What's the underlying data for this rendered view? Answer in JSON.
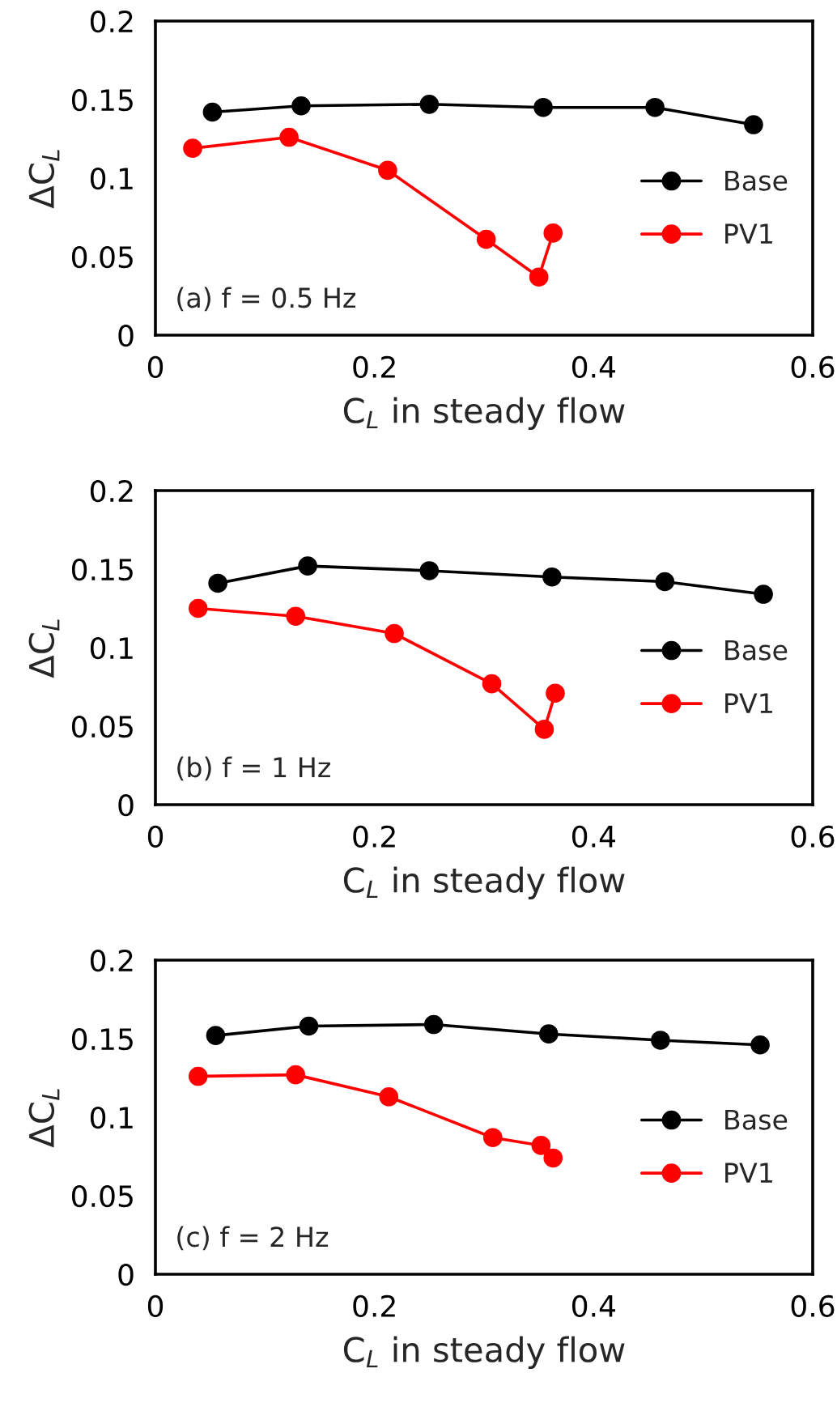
{
  "chart_data": [
    {
      "type": "line",
      "xlabel": "C$_{L}$ in steady flow",
      "ylabel": "ΔC$_{L}$",
      "annotations": [
        "(a) f = 0.5 Hz"
      ],
      "xlim": [
        0,
        0.6
      ],
      "ylim": [
        0,
        0.2
      ],
      "xticks": [
        0,
        0.2,
        0.4,
        0.6
      ],
      "yticks": [
        0,
        0.05,
        0.1,
        0.15,
        0.2
      ],
      "grid": false,
      "legend": "right",
      "marker": "circle",
      "line_style": "solid",
      "series": [
        {
          "name": "Base",
          "color": "#000000",
          "x": [
            0.052,
            0.133,
            0.25,
            0.354,
            0.456,
            0.546
          ],
          "values": [
            0.142,
            0.146,
            0.147,
            0.145,
            0.145,
            0.134
          ]
        },
        {
          "name": "PV1",
          "color": "#ff0000",
          "x": [
            0.034,
            0.122,
            0.212,
            0.302,
            0.35,
            0.363
          ],
          "values": [
            0.119,
            0.126,
            0.105,
            0.061,
            0.037,
            0.065
          ]
        }
      ]
    },
    {
      "type": "line",
      "xlabel": "C$_{L}$ in steady flow",
      "ylabel": "ΔC$_{L}$",
      "annotations": [
        "(b) f = 1 Hz"
      ],
      "xlim": [
        0,
        0.6
      ],
      "ylim": [
        0,
        0.2
      ],
      "xticks": [
        0,
        0.2,
        0.4,
        0.6
      ],
      "yticks": [
        0,
        0.05,
        0.1,
        0.15,
        0.2
      ],
      "grid": false,
      "legend": "right",
      "marker": "circle",
      "line_style": "solid",
      "series": [
        {
          "name": "Base",
          "color": "#000000",
          "x": [
            0.057,
            0.139,
            0.25,
            0.362,
            0.465,
            0.555
          ],
          "values": [
            0.141,
            0.152,
            0.149,
            0.145,
            0.142,
            0.134
          ]
        },
        {
          "name": "PV1",
          "color": "#ff0000",
          "x": [
            0.039,
            0.128,
            0.218,
            0.307,
            0.355,
            0.365
          ],
          "values": [
            0.125,
            0.12,
            0.109,
            0.077,
            0.048,
            0.071
          ]
        }
      ]
    },
    {
      "type": "line",
      "xlabel": "C$_{L}$ in steady flow",
      "ylabel": "ΔC$_{L}$",
      "annotations": [
        "(c) f = 2 Hz"
      ],
      "xlim": [
        0,
        0.6
      ],
      "ylim": [
        0,
        0.2
      ],
      "xticks": [
        0,
        0.2,
        0.4,
        0.6
      ],
      "yticks": [
        0,
        0.05,
        0.1,
        0.15,
        0.2
      ],
      "grid": false,
      "legend": "right",
      "marker": "circle",
      "line_style": "solid",
      "series": [
        {
          "name": "Base",
          "color": "#000000",
          "x": [
            0.055,
            0.14,
            0.254,
            0.359,
            0.461,
            0.552
          ],
          "values": [
            0.152,
            0.158,
            0.159,
            0.153,
            0.149,
            0.146
          ]
        },
        {
          "name": "PV1",
          "color": "#ff0000",
          "x": [
            0.039,
            0.128,
            0.213,
            0.308,
            0.352,
            0.363
          ],
          "values": [
            0.126,
            0.127,
            0.113,
            0.087,
            0.082,
            0.074
          ]
        }
      ]
    }
  ]
}
